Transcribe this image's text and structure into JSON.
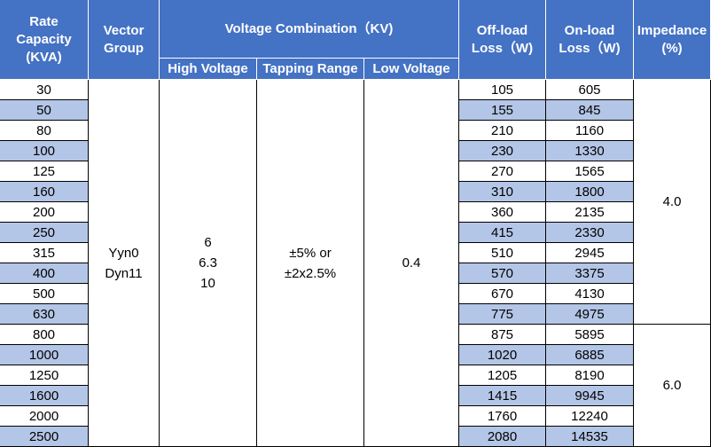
{
  "headers": {
    "rate_capacity": "Rate\nCapacity\n(KVA)",
    "vector_group": "Vector\nGroup",
    "voltage_combination": "Voltage Combination（KV)",
    "high_voltage": "High Voltage",
    "tapping_range": "Tapping Range",
    "low_voltage": "Low Voltage",
    "off_load_loss": "Off-load\nLoss（W)",
    "on_load_loss": "On-load\nLoss（W)",
    "impedance": "Impedance\n(%)"
  },
  "merged": {
    "vector_group": "Yyn0\nDyn11",
    "high_voltage": "6\n6.3\n10",
    "tapping_range": "±5% or\n±2x2.5%",
    "low_voltage": "0.4",
    "impedance_a": "4.0",
    "impedance_b": "6.0"
  },
  "rows": [
    {
      "capacity": "30",
      "off_load": "105",
      "on_load": "605"
    },
    {
      "capacity": "50",
      "off_load": "155",
      "on_load": "845"
    },
    {
      "capacity": "80",
      "off_load": "210",
      "on_load": "1160"
    },
    {
      "capacity": "100",
      "off_load": "230",
      "on_load": "1330"
    },
    {
      "capacity": "125",
      "off_load": "270",
      "on_load": "1565"
    },
    {
      "capacity": "160",
      "off_load": "310",
      "on_load": "1800"
    },
    {
      "capacity": "200",
      "off_load": "360",
      "on_load": "2135"
    },
    {
      "capacity": "250",
      "off_load": "415",
      "on_load": "2330"
    },
    {
      "capacity": "315",
      "off_load": "510",
      "on_load": "2945"
    },
    {
      "capacity": "400",
      "off_load": "570",
      "on_load": "3375"
    },
    {
      "capacity": "500",
      "off_load": "670",
      "on_load": "4130"
    },
    {
      "capacity": "630",
      "off_load": "775",
      "on_load": "4975"
    },
    {
      "capacity": "800",
      "off_load": "875",
      "on_load": "5895"
    },
    {
      "capacity": "1000",
      "off_load": "1020",
      "on_load": "6885"
    },
    {
      "capacity": "1250",
      "off_load": "1205",
      "on_load": "8190"
    },
    {
      "capacity": "1600",
      "off_load": "1415",
      "on_load": "9945"
    },
    {
      "capacity": "2000",
      "off_load": "1760",
      "on_load": "12240"
    },
    {
      "capacity": "2500",
      "off_load": "2080",
      "on_load": "14535"
    }
  ],
  "colors": {
    "header": "#4472c4",
    "band": "#b4c6e7"
  }
}
